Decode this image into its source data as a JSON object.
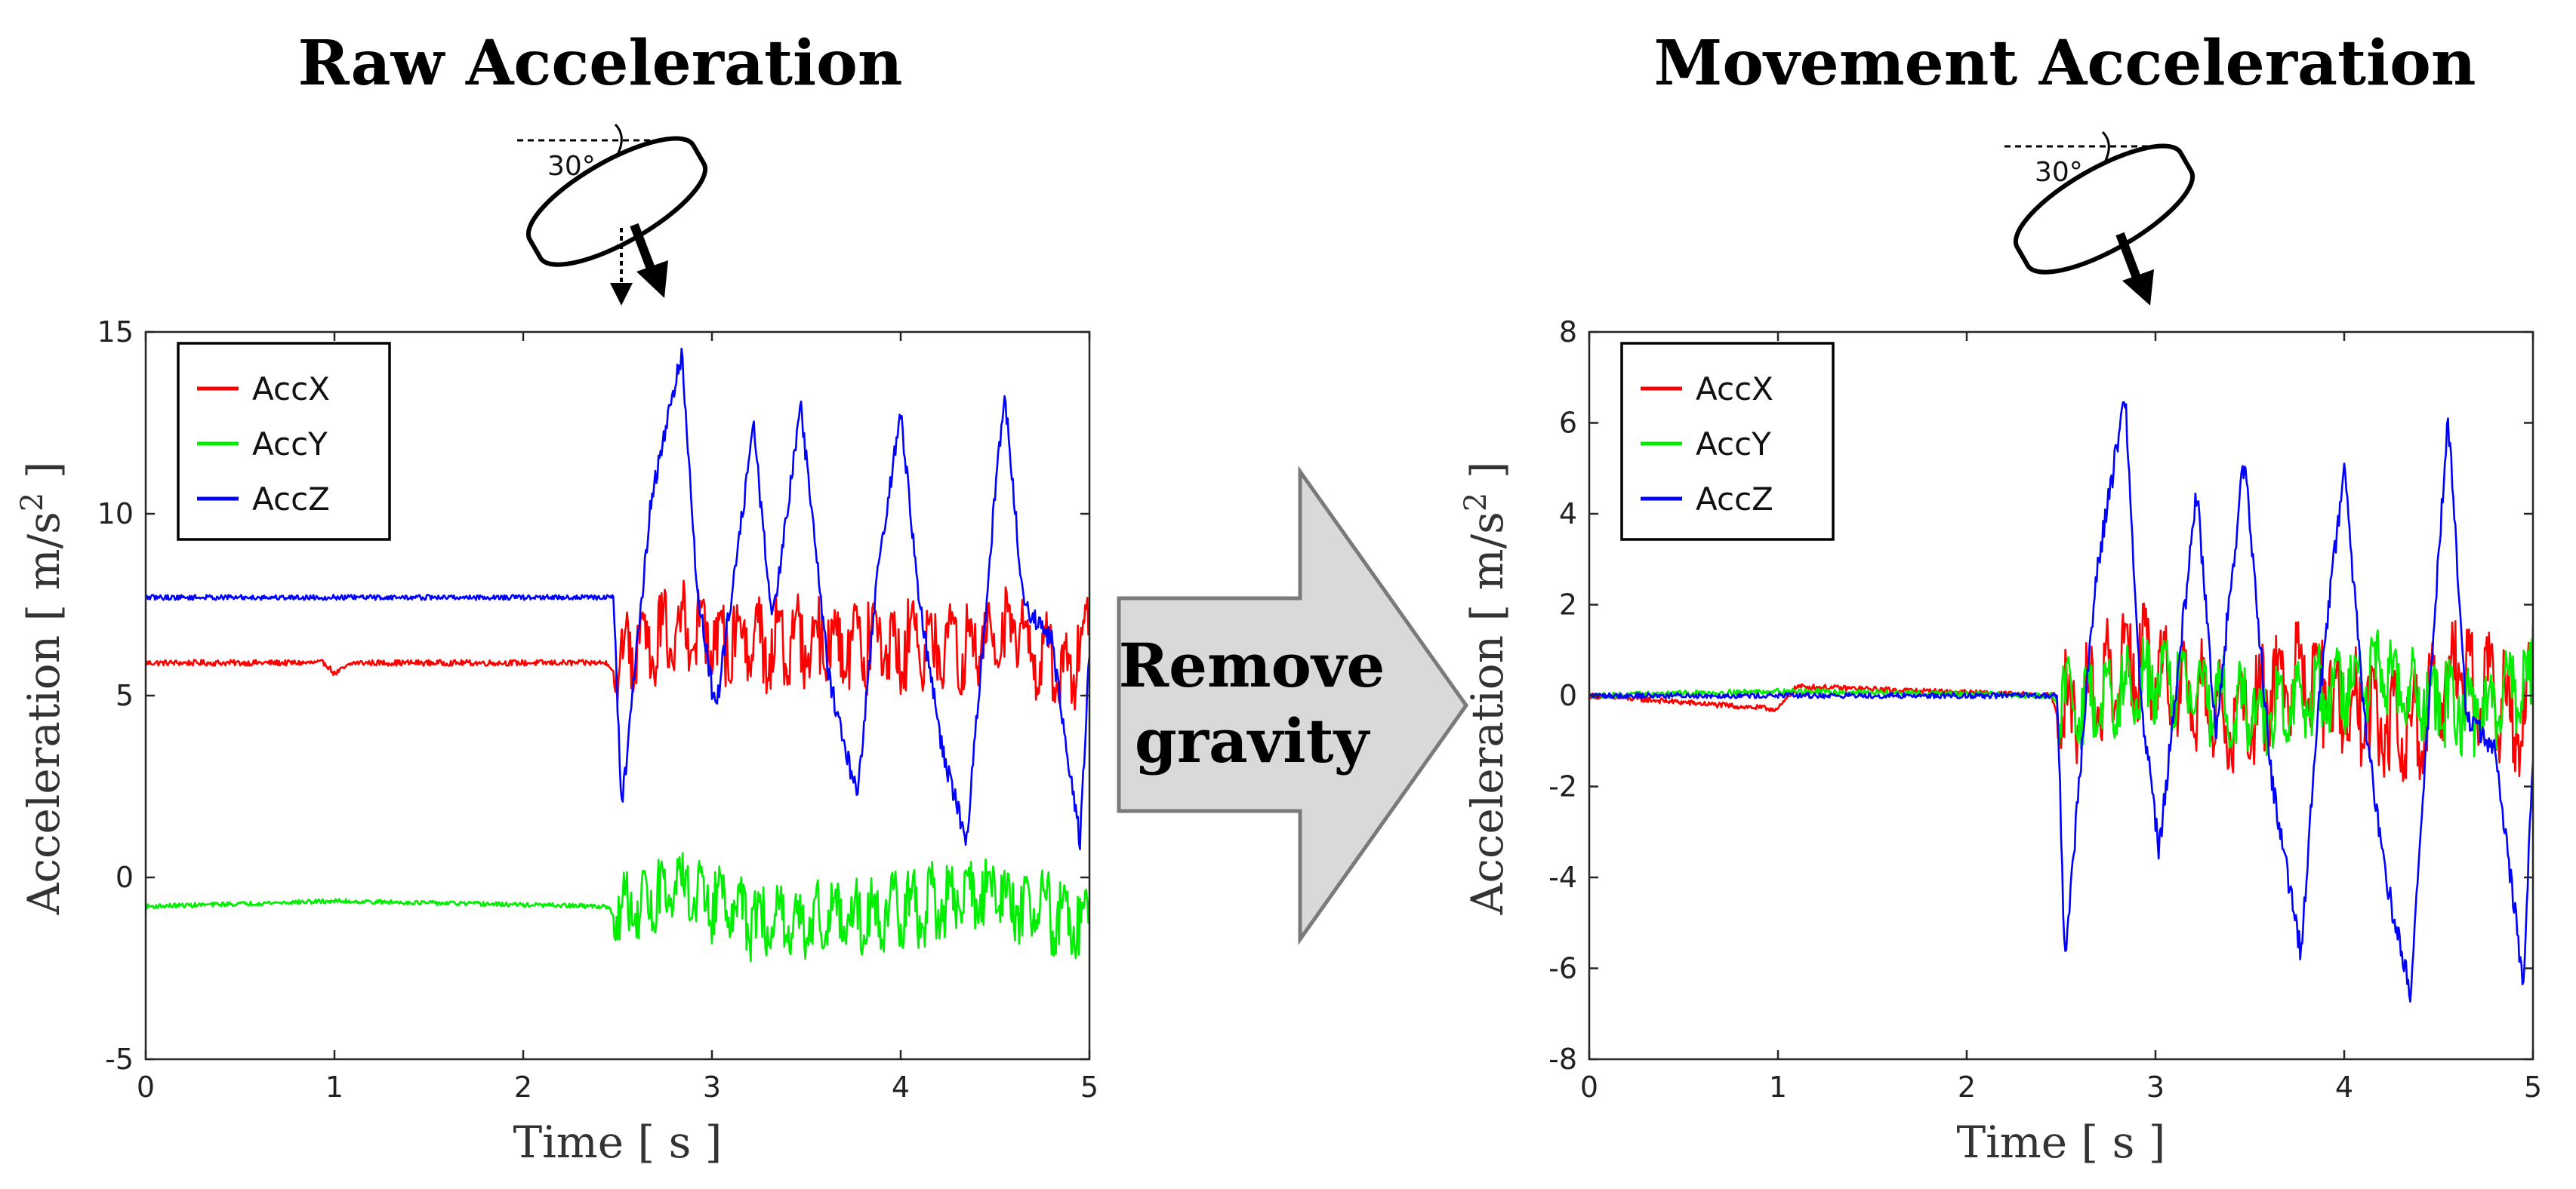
{
  "left_panel": {
    "title": "Raw Acceleration",
    "angle_label": "30°"
  },
  "right_panel": {
    "title": "Movement Acceleration",
    "angle_label": "30°"
  },
  "middle_arrow": {
    "line1": "Remove",
    "line2": "gravity",
    "fill_color": "#d9d9d9"
  },
  "colors": {
    "AccX": "#ff0000",
    "AccY": "#00ee00",
    "AccZ": "#0000ff"
  },
  "chart_data": [
    {
      "type": "line",
      "title": "Raw Acceleration",
      "xlabel": "Time [ s ]",
      "ylabel": "Acceleration [ m/s",
      "ylabel_sup": "2",
      "ylabel_end": " ]",
      "xlim": [
        0,
        5
      ],
      "ylim": [
        -5,
        15
      ],
      "xticks": [
        0,
        1,
        2,
        3,
        4,
        5
      ],
      "yticks": [
        -5,
        0,
        5,
        10,
        15
      ],
      "legend": [
        "AccX",
        "AccY",
        "AccZ"
      ],
      "legend_position": "top-left",
      "series": [
        {
          "name": "AccX",
          "base": 5.9,
          "before_noise": 0.08,
          "after_mean": 6.0,
          "after_amp": 1.4,
          "keypoints": [
            [
              0,
              5.9
            ],
            [
              0.95,
              5.9
            ],
            [
              1.0,
              5.6
            ],
            [
              1.1,
              5.9
            ],
            [
              2.45,
              5.9
            ],
            [
              2.5,
              5.5
            ],
            [
              2.6,
              7.2
            ],
            [
              2.85,
              8.6
            ],
            [
              3.2,
              7.0
            ],
            [
              3.5,
              7.6
            ],
            [
              3.9,
              7.0
            ],
            [
              4.2,
              6.6
            ],
            [
              4.6,
              8.0
            ],
            [
              4.9,
              4.6
            ],
            [
              5.0,
              8.3
            ]
          ]
        },
        {
          "name": "AccY",
          "base": -0.8,
          "before_noise": 0.06,
          "after_mean": -0.8,
          "after_amp": 1.2,
          "keypoints": [
            [
              0,
              -0.8
            ],
            [
              1.0,
              -0.65
            ],
            [
              2.45,
              -0.8
            ],
            [
              2.5,
              -1.3
            ],
            [
              2.7,
              0.0
            ],
            [
              2.85,
              0.6
            ],
            [
              3.25,
              -2.0
            ],
            [
              3.75,
              -1.9
            ],
            [
              4.3,
              0.0
            ],
            [
              4.45,
              0.4
            ],
            [
              4.98,
              -2.3
            ],
            [
              5.0,
              0.1
            ]
          ]
        },
        {
          "name": "AccZ",
          "base": 7.7,
          "before_noise": 0.07,
          "peaks": [
            [
              2.52,
              1.8
            ],
            [
              2.68,
              10.5
            ],
            [
              2.84,
              14.4
            ],
            [
              2.92,
              8.0
            ],
            [
              3.02,
              4.5
            ],
            [
              3.22,
              12.4
            ],
            [
              3.32,
              7.0
            ],
            [
              3.47,
              13.0
            ],
            [
              3.62,
              5.5
            ],
            [
              3.77,
              2.2
            ],
            [
              3.87,
              8.0
            ],
            [
              4.0,
              12.8
            ],
            [
              4.1,
              7.5
            ],
            [
              4.22,
              3.5
            ],
            [
              4.35,
              1.0
            ],
            [
              4.5,
              10.5
            ],
            [
              4.55,
              13.3
            ],
            [
              4.65,
              7.5
            ],
            [
              4.8,
              6.5
            ],
            [
              4.95,
              1.0
            ],
            [
              5.0,
              6.3
            ]
          ]
        }
      ]
    },
    {
      "type": "line",
      "title": "Movement Acceleration",
      "xlabel": "Time [ s ]",
      "ylabel": "Acceleration [ m/s",
      "ylabel_sup": "2",
      "ylabel_end": " ]",
      "xlim": [
        0,
        5
      ],
      "ylim": [
        -8,
        8
      ],
      "xticks": [
        0,
        1,
        2,
        3,
        4,
        5
      ],
      "yticks": [
        -8,
        -6,
        -4,
        -2,
        0,
        2,
        4,
        6,
        8
      ],
      "legend": [
        "AccX",
        "AccY",
        "AccZ"
      ],
      "legend_position": "top-left",
      "series": [
        {
          "name": "AccX",
          "base": 0.0,
          "before_noise": 0.06,
          "after_mean": 0.0,
          "after_amp": 1.4,
          "keypoints": [
            [
              0,
              0
            ],
            [
              1.0,
              -0.3
            ],
            [
              1.1,
              0.2
            ],
            [
              2.45,
              0
            ],
            [
              2.55,
              -1.5
            ],
            [
              2.85,
              2.6
            ],
            [
              3.4,
              -1.6
            ],
            [
              3.8,
              1.3
            ],
            [
              4.35,
              -2.4
            ],
            [
              4.6,
              1.9
            ],
            [
              4.95,
              -1.5
            ],
            [
              5.0,
              1.7
            ]
          ]
        },
        {
          "name": "AccY",
          "base": 0.0,
          "before_noise": 0.06,
          "after_mean": 0.0,
          "after_amp": 1.1,
          "keypoints": [
            [
              0,
              0
            ],
            [
              1.0,
              0.1
            ],
            [
              2.45,
              0
            ],
            [
              2.6,
              -1.0
            ],
            [
              3.0,
              1.2
            ],
            [
              3.5,
              -1.2
            ],
            [
              4.2,
              1.3
            ],
            [
              4.7,
              -1.3
            ],
            [
              5.0,
              1.0
            ]
          ]
        },
        {
          "name": "AccZ",
          "base": 0.0,
          "before_noise": 0.06,
          "peaks": [
            [
              2.52,
              -5.9
            ],
            [
              2.68,
              2.5
            ],
            [
              2.84,
              6.6
            ],
            [
              2.92,
              0.0
            ],
            [
              3.02,
              -3.4
            ],
            [
              3.22,
              4.5
            ],
            [
              3.32,
              -0.8
            ],
            [
              3.47,
              5.2
            ],
            [
              3.62,
              -2.0
            ],
            [
              3.77,
              -5.6
            ],
            [
              3.87,
              0.0
            ],
            [
              4.0,
              5.1
            ],
            [
              4.1,
              -0.2
            ],
            [
              4.22,
              -4.0
            ],
            [
              4.35,
              -6.5
            ],
            [
              4.5,
              3.0
            ],
            [
              4.55,
              6.1
            ],
            [
              4.65,
              -0.5
            ],
            [
              4.8,
              -1.2
            ],
            [
              4.95,
              -6.4
            ],
            [
              5.0,
              -1.3
            ]
          ]
        }
      ]
    }
  ]
}
